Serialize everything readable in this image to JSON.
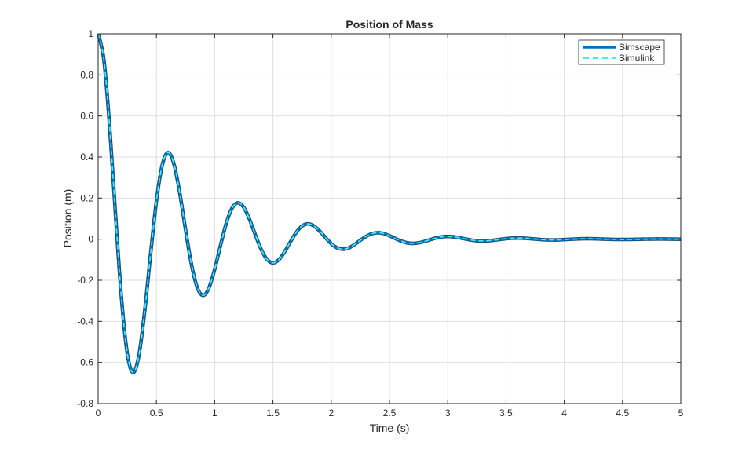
{
  "chart_data": {
    "type": "line",
    "title": "Position of Mass",
    "xlabel": "Time (s)",
    "ylabel": "Position (m)",
    "xlim": [
      0,
      5
    ],
    "ylim": [
      -0.8,
      1
    ],
    "xticks": [
      0,
      0.5,
      1,
      1.5,
      2,
      2.5,
      3,
      3.5,
      4,
      4.5,
      5
    ],
    "xtick_labels": [
      "0",
      "0.5",
      "1",
      "1.5",
      "2",
      "2.5",
      "3",
      "3.5",
      "4",
      "4.5",
      "5"
    ],
    "yticks": [
      -0.8,
      -0.6,
      -0.4,
      -0.2,
      0,
      0.2,
      0.4,
      0.6,
      0.8,
      1
    ],
    "ytick_labels": [
      "-0.8",
      "-0.6",
      "-0.4",
      "-0.2",
      "0",
      "0.2",
      "0.4",
      "0.6",
      "0.8",
      "1"
    ],
    "grid": true,
    "legend_position": "top-right",
    "x_step": 0.05,
    "y": [
      1,
      0.8698,
      0.536,
      0.1108,
      -0.2856,
      -0.5561,
      -0.6492,
      -0.5647,
      -0.348,
      -0.0719,
      0.1854,
      0.361,
      0.4214,
      0.3666,
      0.2259,
      0.0467,
      -0.1204,
      -0.2344,
      -0.2736,
      -0.238,
      -0.1467,
      -0.0303,
      0.0782,
      0.1522,
      0.1776,
      0.1545,
      0.0952,
      0.0197,
      -0.0508,
      -0.0988,
      -0.1153,
      -0.1003,
      -0.0618,
      -0.0128,
      0.033,
      0.0641,
      0.0749,
      0.0651,
      0.0401,
      0.0083,
      -0.0214,
      -0.0416,
      -0.0486,
      -0.0423,
      -0.026,
      -0.0054,
      0.0139,
      0.027,
      0.0316,
      0.0274,
      0.0169,
      0.0035,
      -0.009,
      -0.0175,
      -0.0205,
      -0.0178,
      -0.011,
      -0.0023,
      0.0059,
      0.0114,
      0.0133,
      0.0116,
      0.0071,
      0.0015,
      -0.0038,
      -0.0074,
      -0.0086,
      -0.0075,
      -0.0046,
      -0.001,
      0.0025,
      0.0048,
      0.0056,
      0.0049,
      0.003,
      0.0006,
      -0.0016,
      -0.0031,
      -0.0036,
      -0.0032,
      -0.0019,
      -0.0004,
      0.001,
      0.002,
      0.0024,
      0.0021,
      0.0013,
      0.0003,
      -0.0007,
      -0.0013,
      -0.0015,
      -0.0013,
      -0.0008,
      -0.0002,
      0.0004,
      0.0008,
      0.001,
      0.0009,
      0.0005,
      0.0001,
      -0.0003
    ],
    "series": [
      {
        "name": "Simscape",
        "color": "#0072BD",
        "style": "solid"
      },
      {
        "name": "Simulink",
        "color": "#4DEEEA",
        "style": "dashed"
      }
    ]
  }
}
